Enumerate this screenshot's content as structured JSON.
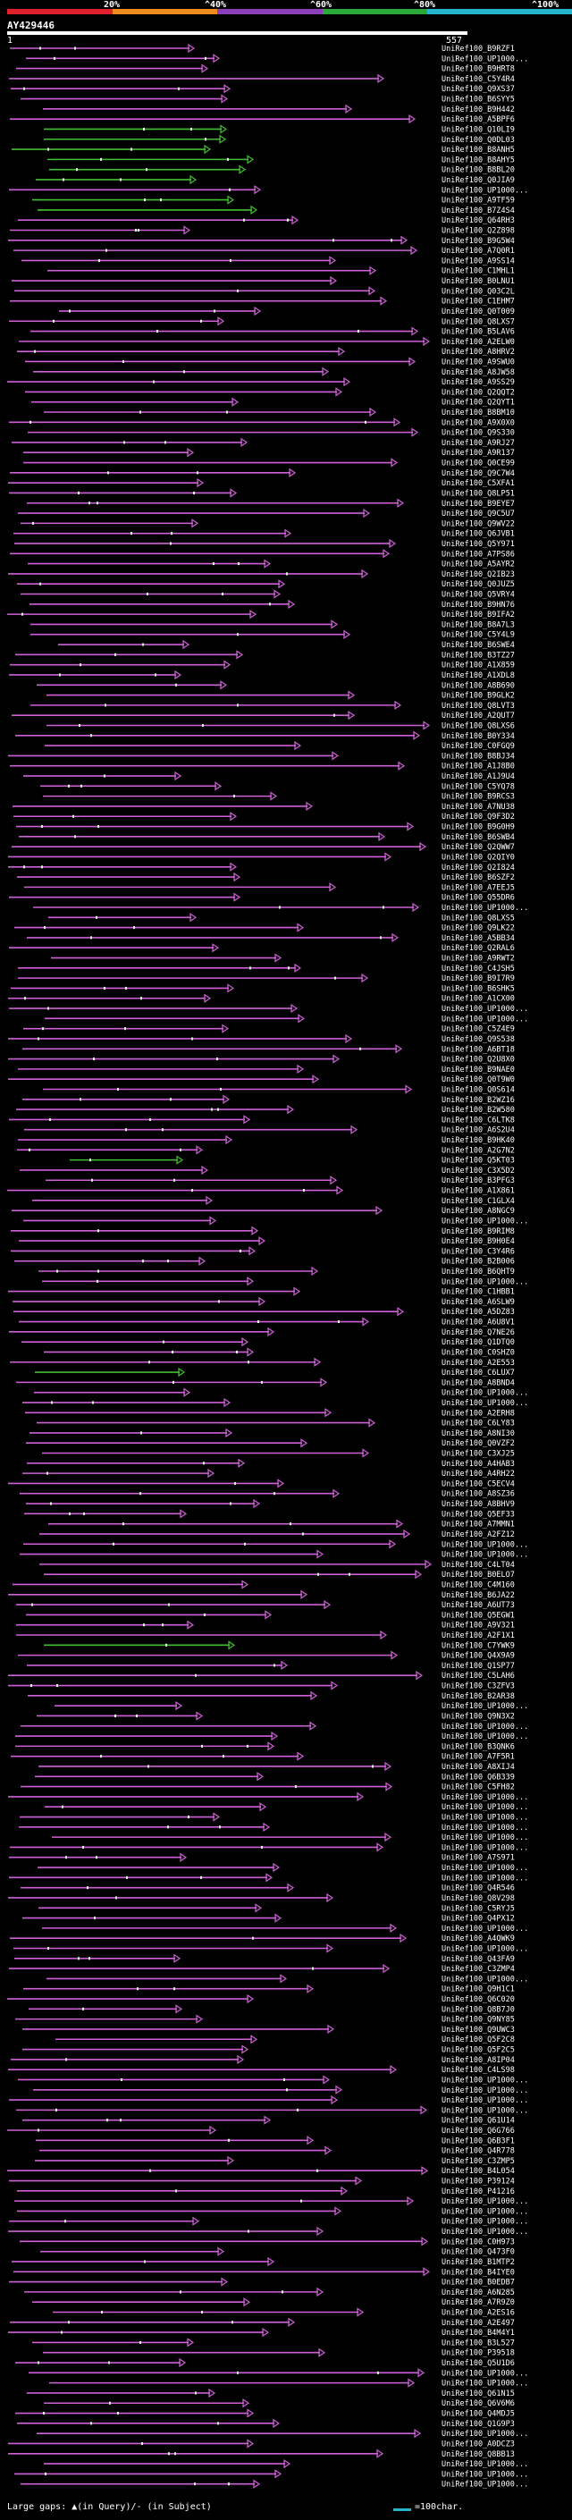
{
  "scale": {
    "labels": [
      "20%",
      "^40%",
      "^60%",
      "^80%",
      "^100%"
    ],
    "colors": [
      "#e0202a",
      "#f08c1e",
      "#8b3fb8",
      "#2aa83a",
      "#25b5cf"
    ]
  },
  "query": {
    "id": "AY429446",
    "start": "1",
    "end": "557"
  },
  "hit_colors": {
    "pink": "#d060d8",
    "green": "#40c030"
  },
  "hits": [
    "UniRef100_B9RZF1",
    "UniRef100_UP1000...",
    "UniRef100_B9HRT8",
    "UniRef100_C5Y4R4",
    "UniRef100_Q9XS37",
    "UniRef100_B6SYY5",
    "UniRef100_B9H442",
    "UniRef100_A5BPF6",
    "UniRef100_Q10LI9",
    "UniRef100_Q0DL03",
    "UniRef100_B8ANH5",
    "UniRef100_B8AHY5",
    "UniRef100_B8BL20",
    "UniRef100_Q0JIA9",
    "UniRef100_UP1000...",
    "UniRef100_A9TF59",
    "UniRef100_B7Z4S4",
    "UniRef100_Q64RH3",
    "UniRef100_Q2Z898",
    "UniRef100_B9G5W4",
    "UniRef100_A7Q0R1",
    "UniRef100_A9SS14",
    "UniRef100_C1MHL1",
    "UniRef100_B0LNU1",
    "UniRef100_Q03C2L",
    "UniRef100_C1EHM7",
    "UniRef100_Q0T009",
    "UniRef100_Q8LXS7",
    "UniRef100_B5LAV6",
    "UniRef100_A2ELW0",
    "UniRef100_A8HRV2",
    "UniRef100_A9SWU0",
    "UniRef100_A8JW58",
    "UniRef100_A9SS29",
    "UniRef100_Q2QQT2",
    "UniRef100_Q2QYT1",
    "UniRef100_B8BM10",
    "UniRef100_A9X0X0",
    "UniRef100_Q9S330",
    "UniRef100_A9RJ27",
    "UniRef100_A9R137",
    "UniRef100_Q0CE99",
    "UniRef100_Q9C7W4",
    "UniRef100_C5XFA1",
    "UniRef100_Q8LP51",
    "UniRef100_B9EYE7",
    "UniRef100_Q9C5U7",
    "UniRef100_Q9WV22",
    "UniRef100_Q6JVB1",
    "UniRef100_Q5Y971",
    "UniRef100_A7PS86",
    "UniRef100_A5AYR2",
    "UniRef100_Q2IB23",
    "UniRef100_Q0JUZ5",
    "UniRef100_Q5VRY4",
    "UniRef100_B9HN76",
    "UniRef100_B9IFA2",
    "UniRef100_B8A7L3",
    "UniRef100_C5Y4L9",
    "UniRef100_B6SWE4",
    "UniRef100_B3TZ27",
    "UniRef100_A1X859",
    "UniRef100_A1XDL8",
    "UniRef100_A8B690",
    "UniRef100_B9GLK2",
    "UniRef100_Q8LVT3",
    "UniRef100_A2QUT7",
    "UniRef100_Q8LXS6",
    "UniRef100_B0Y334",
    "UniRef100_C0FGQ9",
    "UniRef100_B8BJ34",
    "UniRef100_A1J8B0",
    "UniRef100_A1J9U4",
    "UniRef100_C5YQ78",
    "UniRef100_B9RCS3",
    "UniRef100_A7NU38",
    "UniRef100_Q9F3D2",
    "UniRef100_B9G0H9",
    "UniRef100_B6SWB4",
    "UniRef100_Q2QWW7",
    "UniRef100_Q2QIY0",
    "UniRef100_Q2I824",
    "UniRef100_B6SZF2",
    "UniRef100_A7EEJ5",
    "UniRef100_Q55DR6",
    "UniRef100_UP1000...",
    "UniRef100_Q8LXS5",
    "UniRef100_Q9LK22",
    "UniRef100_A5BB34",
    "UniRef100_Q2RAL6",
    "UniRef100_A9RWT2",
    "UniRef100_C4JSH5",
    "UniRef100_B9I7R9",
    "UniRef100_B6SHK5",
    "UniRef100_A1CX00",
    "UniRef100_UP1000...",
    "UniRef100_UP1000...",
    "UniRef100_C5Z4E9",
    "UniRef100_Q9S538",
    "UniRef100_A6BT18",
    "UniRef100_Q2U8X0",
    "UniRef100_B9NAE0",
    "UniRef100_Q0T9W0",
    "UniRef100_Q0S614",
    "UniRef100_B2WZ16",
    "UniRef100_B2W580",
    "UniRef100_C6LTK8",
    "UniRef100_A6S2U4",
    "UniRef100_B9HK40",
    "UniRef100_A2G7N2",
    "UniRef100_Q5KT03",
    "UniRef100_C3X5D2",
    "UniRef100_B3PFG3",
    "UniRef100_A1X861",
    "UniRef100_C1GLX4",
    "UniRef100_A8NGC9",
    "UniRef100_UP1000...",
    "UniRef100_B9RIM8",
    "UniRef100_B9H0E4",
    "UniRef100_C3Y4R6",
    "UniRef100_B2B006",
    "UniRef100_B6QHT9",
    "UniRef100_UP1000...",
    "UniRef100_C1HBB1",
    "UniRef100_A6SLW9",
    "UniRef100_A5DZ83",
    "UniRef100_A6U8V1",
    "UniRef100_Q7NE26",
    "UniRef100_Q1DTQ0",
    "UniRef100_C0SHZ0",
    "UniRef100_A2E553",
    "UniRef100_C6LUX7",
    "UniRef100_A8BND4",
    "UniRef100_UP1000...",
    "UniRef100_UP1000...",
    "UniRef100_A2ERH8",
    "UniRef100_C6LY83",
    "UniRef100_A8NI30",
    "UniRef100_Q0VZF2",
    "UniRef100_C3XJ25",
    "UniRef100_A4HAB3",
    "UniRef100_A4RH22",
    "UniRef100_C5ECV4",
    "UniRef100_A8SZ36",
    "UniRef100_A8BHV9",
    "UniRef100_Q5EF33",
    "UniRef100_A7MMN1",
    "UniRef100_A2FZ12",
    "UniRef100_UP1000...",
    "UniRef100_UP1000...",
    "UniRef100_C4LT04",
    "UniRef100_B0ELO7",
    "UniRef100_C4M160",
    "UniRef100_B6JA22",
    "UniRef100_A6UT73",
    "UniRef100_Q5EGW1",
    "UniRef100_A9V321",
    "UniRef100_A2F1X1",
    "UniRef100_C7YWK9",
    "UniRef100_Q4X9A9",
    "UniRef100_Q1SP77",
    "UniRef100_C5LAH6",
    "UniRef100_C3ZFV3",
    "UniRef100_B2AR38",
    "UniRef100_UP1000...",
    "UniRef100_Q9N3X2",
    "UniRef100_UP1000...",
    "UniRef100_UP1000...",
    "UniRef100_B3QNK6",
    "UniRef100_A7F5R1",
    "UniRef100_A8XIJ4",
    "UniRef100_Q6B339",
    "UniRef100_C5FH82",
    "UniRef100_UP1000...",
    "UniRef100_UP1000...",
    "UniRef100_UP1000...",
    "UniRef100_UP1000...",
    "UniRef100_UP1000...",
    "UniRef100_UP1000...",
    "UniRef100_A7S971",
    "UniRef100_UP1000...",
    "UniRef100_UP1000...",
    "UniRef100_Q4R546",
    "UniRef100_Q8V298",
    "UniRef100_C5RYJ5",
    "UniRef100_Q4PX12",
    "UniRef100_UP1000...",
    "UniRef100_A4QWK9",
    "UniRef100_UP1000...",
    "UniRef100_Q43FA9",
    "UniRef100_C3ZMP4",
    "UniRef100_UP1000...",
    "UniRef100_Q9H1C1",
    "UniRef100_Q6C020",
    "UniRef100_Q8B7J0",
    "UniRef100_Q9NY85",
    "UniRef100_Q9UWC3",
    "UniRef100_Q5F2C8",
    "UniRef100_Q5F2C5",
    "UniRef100_A8IP04",
    "UniRef100_C4LS98",
    "UniRef100_UP1000...",
    "UniRef100_UP1000...",
    "UniRef100_UP1000...",
    "UniRef100_UP1000...",
    "UniRef100_Q61U14",
    "UniRef100_Q6G766",
    "UniRef100_Q6B3F1",
    "UniRef100_Q4R778",
    "UniRef100_C3ZMP5",
    "UniRef100_B4L054",
    "UniRef100_P39124",
    "UniRef100_P41216",
    "UniRef100_UP1000...",
    "UniRef100_UP1000...",
    "UniRef100_UP1000...",
    "UniRef100_UP1000...",
    "UniRef100_C0H973",
    "UniRef100_Q473F0",
    "UniRef100_B1MTP2",
    "UniRef100_B4IYE0",
    "UniRef100_B0EDB7",
    "UniRef100_A6N285",
    "UniRef100_A7R9Z0",
    "UniRef100_A2ES16",
    "UniRef100_A2E497",
    "UniRef100_B4M4Y1",
    "UniRef100_B3L527",
    "UniRef100_P39518",
    "UniRef100_Q5U1D6",
    "UniRef100_UP1000...",
    "UniRef100_UP1000...",
    "UniRef100_Q61N15",
    "UniRef100_Q6V6M6",
    "UniRef100_Q4MDJ5",
    "UniRef100_Q1G9P3",
    "UniRef100_UP1000...",
    "UniRef100_A0DCZ3",
    "UniRef100_Q8BB13",
    "UniRef100_UP1000...",
    "UniRef100_UP1000...",
    "UniRef100_UP1000..."
  ],
  "footer": {
    "text": "Large gaps: ▲(in Query)/- (in Subject)",
    "scale_label": "=100char."
  }
}
